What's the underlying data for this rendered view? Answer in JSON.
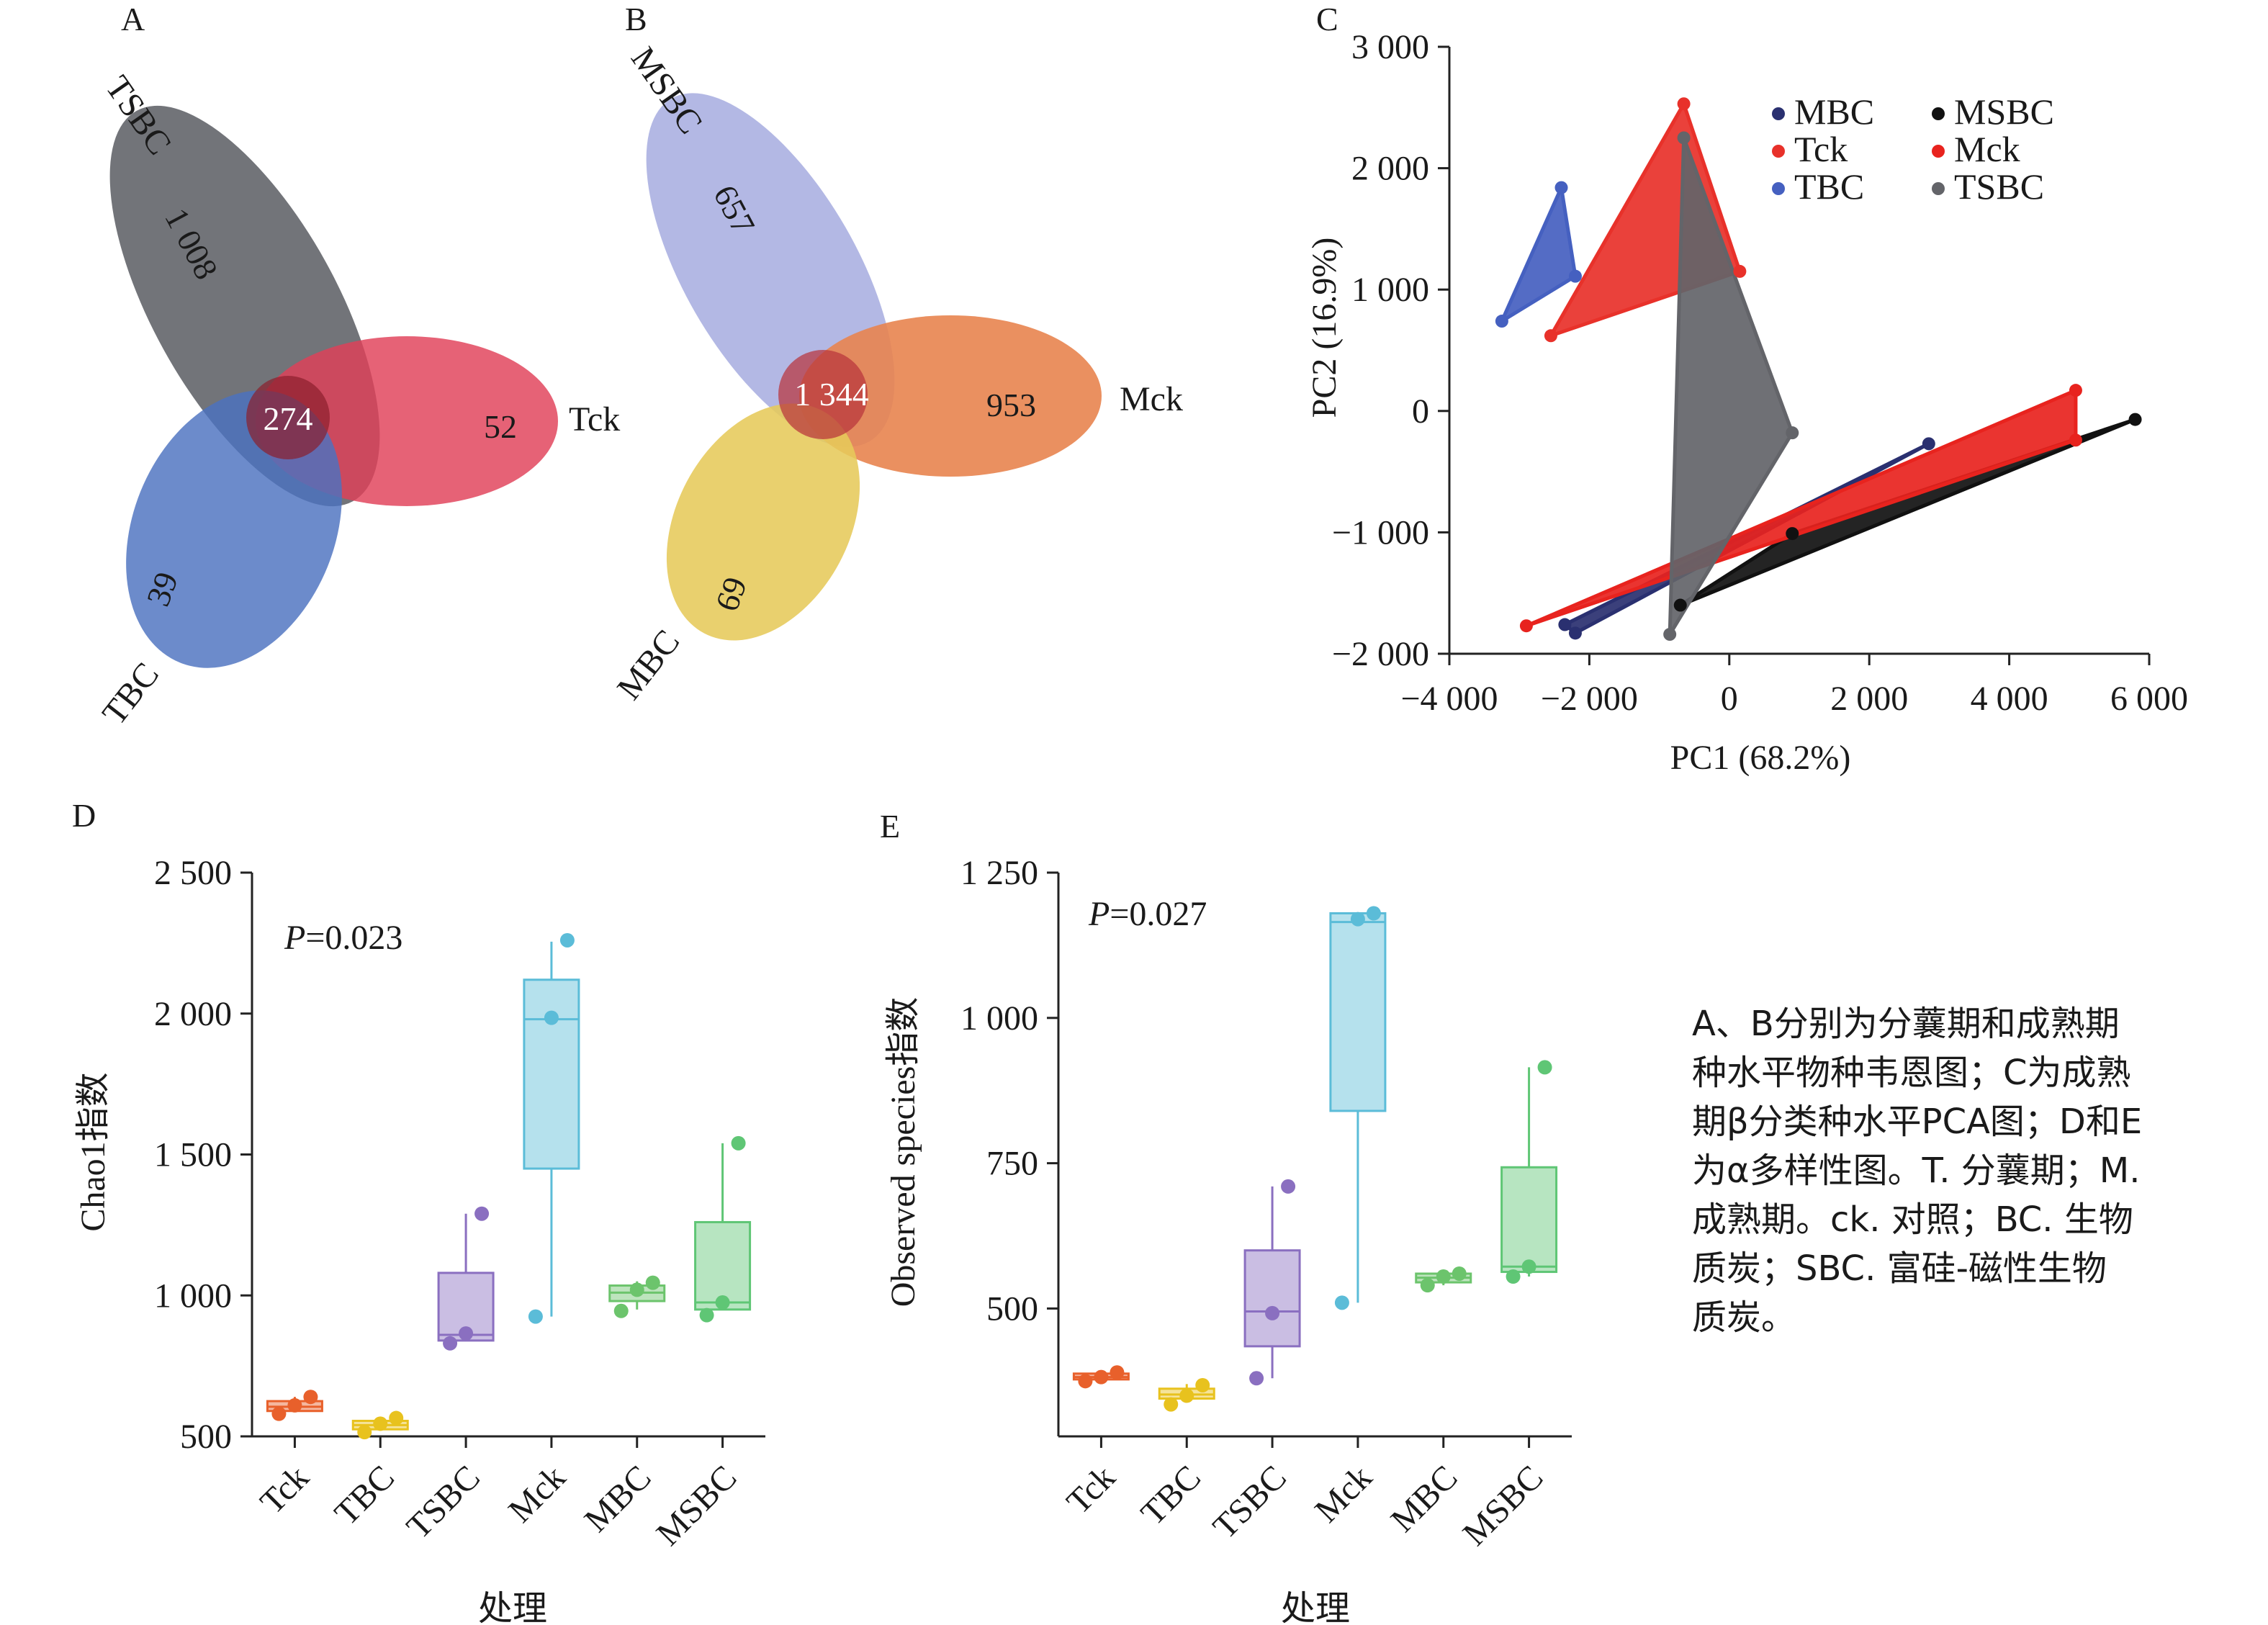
{
  "panels": [
    {
      "id": "A",
      "label": "A"
    },
    {
      "id": "B",
      "label": "B"
    },
    {
      "id": "C",
      "label": "C"
    },
    {
      "id": "D",
      "label": "D"
    },
    {
      "id": "E",
      "label": "E"
    }
  ],
  "chart_data": [
    {
      "panel": "A",
      "type": "venn",
      "sets": [
        {
          "name": "TSBC",
          "unique": "1 008",
          "color": "#5f6166"
        },
        {
          "name": "Tck",
          "unique": "52",
          "color": "#e04058"
        },
        {
          "name": "TBC",
          "unique": "39",
          "color": "#4c72c0"
        }
      ],
      "shared": "274"
    },
    {
      "panel": "B",
      "type": "venn",
      "sets": [
        {
          "name": "MSBC",
          "unique": "657",
          "color": "#a9aee0"
        },
        {
          "name": "Mck",
          "unique": "953",
          "color": "#e8844f"
        },
        {
          "name": "MBC",
          "unique": "69",
          "color": "#e6c95a"
        }
      ],
      "shared": "1 344"
    },
    {
      "panel": "C",
      "type": "scatter",
      "xlabel": "PC1 (68.2%)",
      "ylabel": "PC2 (16.9%)",
      "xlim": [
        -4000,
        6000
      ],
      "ylim": [
        -2000,
        3000
      ],
      "xticks": [
        -4000,
        -2000,
        0,
        2000,
        4000,
        6000
      ],
      "yticks": [
        -2000,
        -1000,
        0,
        1000,
        2000,
        3000
      ],
      "xtick_labels": [
        "−4 000",
        "−2 000",
        "0",
        "2 000",
        "4 000",
        "6 000"
      ],
      "ytick_labels": [
        "−2 000",
        "−1 000",
        "0",
        "1 000",
        "2 000",
        "3 000"
      ],
      "legend_position": "top-right",
      "series": [
        {
          "name": "MBC",
          "color": "#2a3070",
          "points": [
            [
              -2200,
              -1830
            ],
            [
              -2350,
              -1760
            ],
            [
              2850,
              -270
            ]
          ]
        },
        {
          "name": "MSBC",
          "color": "#111111",
          "points": [
            [
              -700,
              -1600
            ],
            [
              900,
              -1010
            ],
            [
              5800,
              -70
            ]
          ]
        },
        {
          "name": "Tck",
          "color": "#e8312a",
          "points": [
            [
              -2550,
              620
            ],
            [
              -650,
              2530
            ],
            [
              150,
              1150
            ]
          ]
        },
        {
          "name": "Mck",
          "color": "#e8231e",
          "points": [
            [
              -2900,
              -1770
            ],
            [
              4950,
              170
            ],
            [
              4950,
              -240
            ]
          ]
        },
        {
          "name": "TBC",
          "color": "#4560c0",
          "points": [
            [
              -3250,
              740
            ],
            [
              -2400,
              1840
            ],
            [
              -2200,
              1110
            ]
          ]
        },
        {
          "name": "TSBC",
          "color": "#636469",
          "points": [
            [
              -650,
              2250
            ],
            [
              900,
              -180
            ],
            [
              -850,
              -1840
            ]
          ]
        }
      ]
    },
    {
      "panel": "D",
      "type": "box",
      "ylabel": "Chao1指数",
      "xlabel": "处理",
      "annotation_italic": "P",
      "annotation_rest": "=0.023",
      "ylim": [
        500,
        2500
      ],
      "yticks": [
        500,
        1000,
        1500,
        2000,
        2500
      ],
      "ytick_labels": [
        "500",
        "1 000",
        "1 500",
        "2 000",
        "2 500"
      ],
      "categories": [
        "Tck",
        "TBC",
        "TSBC",
        "Mck",
        "MBC",
        "MSBC"
      ],
      "boxes": [
        {
          "name": "Tck",
          "q1": 590,
          "median": 605,
          "q3": 625,
          "min": 590,
          "max": 640,
          "points": [
            580,
            610,
            640
          ],
          "color": "#e8602b"
        },
        {
          "name": "TBC",
          "q1": 525,
          "median": 540,
          "q3": 555,
          "min": 520,
          "max": 565,
          "points": [
            515,
            545,
            565
          ],
          "color": "#e8c21e"
        },
        {
          "name": "TSBC",
          "q1": 840,
          "median": 860,
          "q3": 1080,
          "min": 840,
          "max": 1290,
          "points": [
            830,
            865,
            1290
          ],
          "color": "#8a6fc0"
        },
        {
          "name": "Mck",
          "q1": 1450,
          "median": 1980,
          "q3": 2120,
          "min": 925,
          "max": 2255,
          "points": [
            925,
            1985,
            2260
          ],
          "color": "#5bbcd8"
        },
        {
          "name": "MBC",
          "q1": 980,
          "median": 1010,
          "q3": 1035,
          "min": 950,
          "max": 1050,
          "points": [
            945,
            1020,
            1045
          ],
          "color": "#6cc46c"
        },
        {
          "name": "MSBC",
          "q1": 950,
          "median": 975,
          "q3": 1260,
          "min": 950,
          "max": 1540,
          "points": [
            930,
            975,
            1540
          ],
          "color": "#5fc675"
        }
      ]
    },
    {
      "panel": "E",
      "type": "box",
      "ylabel": "Observed species指数",
      "xlabel": "处理",
      "annotation_italic": "P",
      "annotation_rest": "=0.027",
      "ylim": [
        280,
        1250
      ],
      "yticks": [
        500,
        750,
        1000,
        1250
      ],
      "ytick_labels": [
        "500",
        "750",
        "1 000",
        "1 250"
      ],
      "categories": [
        "Tck",
        "TBC",
        "TSBC",
        "Mck",
        "MBC",
        "MSBC"
      ],
      "boxes": [
        {
          "name": "Tck",
          "q1": 378,
          "median": 382,
          "q3": 388,
          "min": 378,
          "max": 392,
          "points": [
            375,
            382,
            390
          ],
          "color": "#e8602b"
        },
        {
          "name": "TBC",
          "q1": 345,
          "median": 352,
          "q3": 362,
          "min": 340,
          "max": 370,
          "points": [
            335,
            350,
            368
          ],
          "color": "#e8c21e"
        },
        {
          "name": "TSBC",
          "q1": 435,
          "median": 495,
          "q3": 600,
          "min": 380,
          "max": 710,
          "points": [
            380,
            492,
            710
          ],
          "color": "#8a6fc0"
        },
        {
          "name": "Mck",
          "q1": 840,
          "median": 1165,
          "q3": 1180,
          "min": 510,
          "max": 1180,
          "points": [
            510,
            1170,
            1180
          ],
          "color": "#5bbcd8"
        },
        {
          "name": "MBC",
          "q1": 545,
          "median": 553,
          "q3": 560,
          "min": 540,
          "max": 560,
          "points": [
            540,
            555,
            560
          ],
          "color": "#6cc46c"
        },
        {
          "name": "MSBC",
          "q1": 563,
          "median": 572,
          "q3": 743,
          "min": 555,
          "max": 915,
          "points": [
            555,
            572,
            915
          ],
          "color": "#5fc675"
        }
      ]
    }
  ],
  "caption": [
    "A、B分别为分蘘期和成熟期",
    "种水平物种韦恩图；C为成熟",
    "期β分类种水平PCA图；D和E",
    "为α多样性图。T. 分蘘期；M.",
    "成熟期。ck. 对照；BC. 生物",
    "质炭；SBC. 富硅-磁性生物",
    "质炭。"
  ]
}
